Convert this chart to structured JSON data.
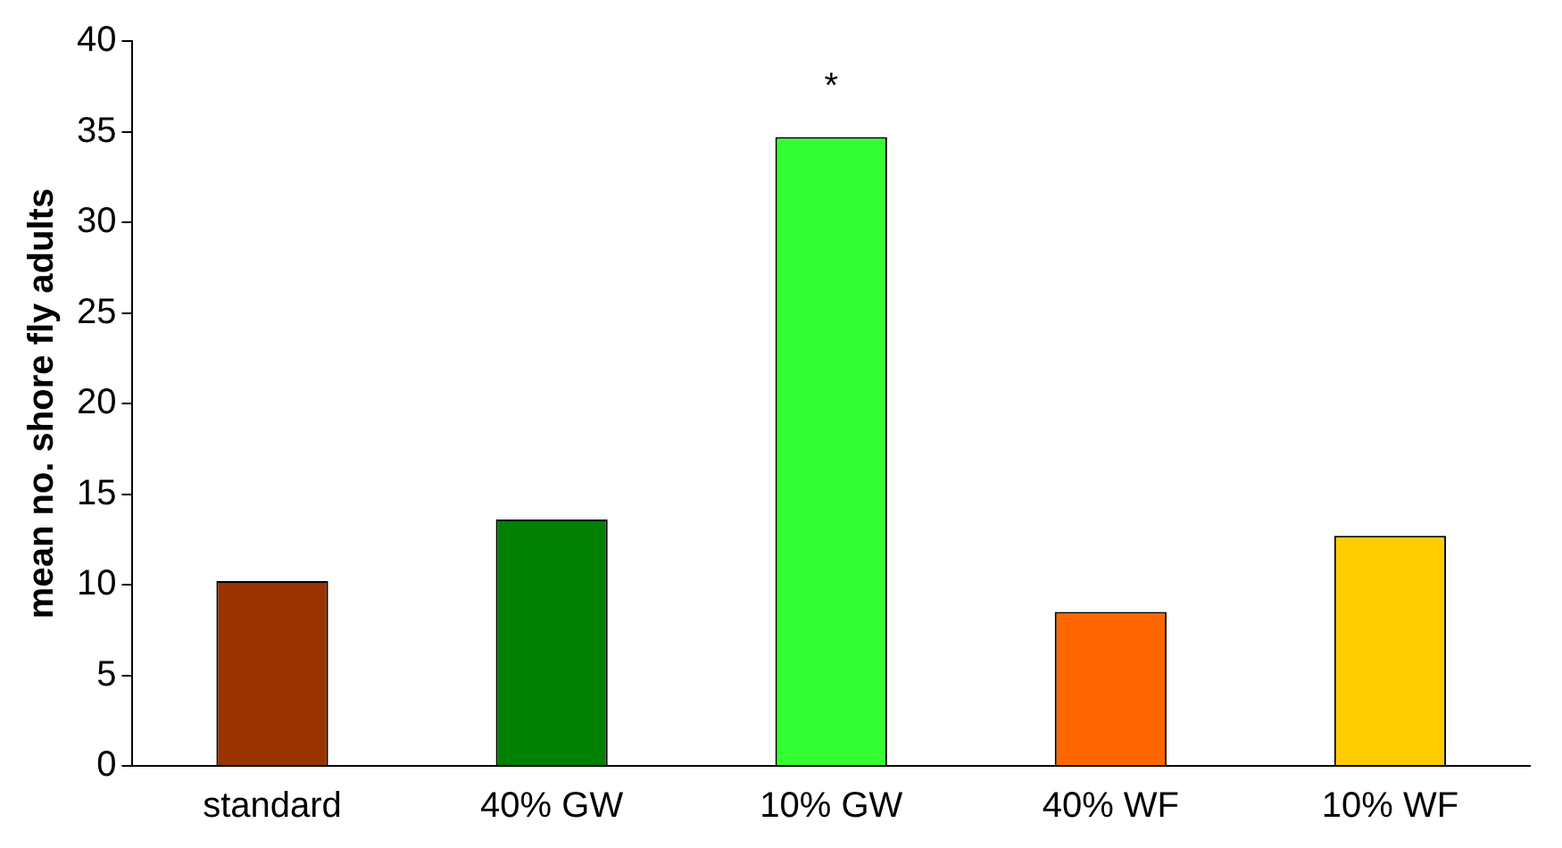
{
  "chart_data": {
    "type": "bar",
    "ylabel": "mean no. shore fly adults",
    "categories": [
      "standard",
      "40% GW",
      "10% GW",
      "40% WF",
      "10% WF"
    ],
    "values": [
      10.2,
      13.6,
      34.7,
      8.5,
      12.7
    ],
    "colors": [
      "#993300",
      "#008000",
      "#33ff33",
      "#ff6600",
      "#ffcc00"
    ],
    "ylim": [
      0,
      40
    ],
    "yticks": [
      0,
      5,
      10,
      15,
      20,
      25,
      30,
      35,
      40
    ],
    "grid": false,
    "legend": false,
    "annotations": [
      "*"
    ]
  }
}
